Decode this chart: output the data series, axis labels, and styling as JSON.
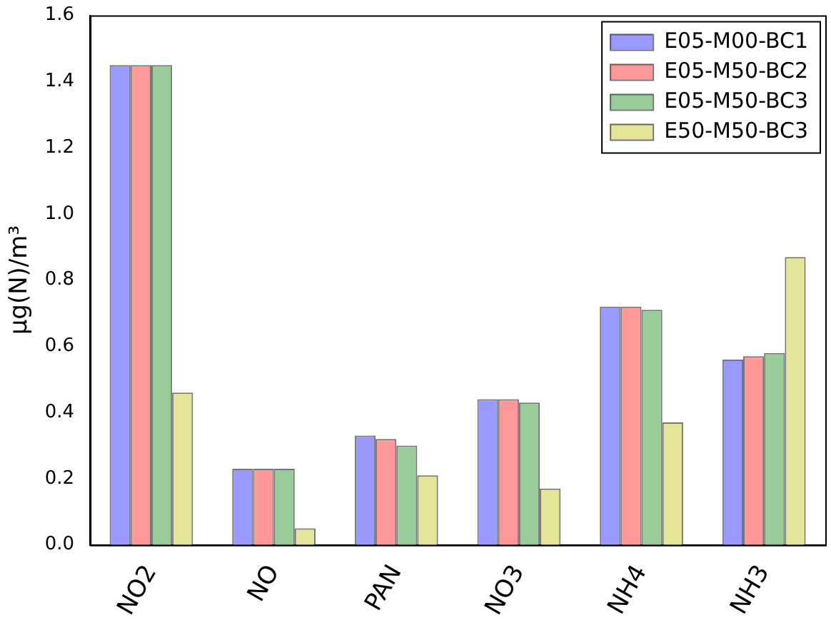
{
  "chart_data": {
    "type": "bar",
    "ylabel": "μg(N)/m³",
    "categories": [
      "NO2",
      "NO",
      "PAN",
      "NO3",
      "NH4",
      "NH3"
    ],
    "series": [
      {
        "name": "E05-M00-BC1",
        "color": "#9999ff",
        "values": [
          1.45,
          0.23,
          0.33,
          0.44,
          0.72,
          0.56
        ]
      },
      {
        "name": "E05-M50-BC2",
        "color": "#ff9999",
        "values": [
          1.45,
          0.23,
          0.32,
          0.44,
          0.72,
          0.57
        ]
      },
      {
        "name": "E05-M50-BC3",
        "color": "#99cc99",
        "values": [
          1.45,
          0.23,
          0.3,
          0.43,
          0.71,
          0.58
        ]
      },
      {
        "name": "E50-M50-BC3",
        "color": "#e5e599",
        "values": [
          0.46,
          0.05,
          0.21,
          0.17,
          0.37,
          0.87
        ]
      }
    ],
    "ylim": [
      0,
      1.6
    ],
    "yticks": [
      {
        "value": 0,
        "label": "0.0"
      },
      0.2,
      0.4,
      0.6,
      0.8,
      {
        "value": 1,
        "label": "1.0"
      },
      1.2,
      1.4,
      1.6
    ],
    "grid": false,
    "legend": "top right"
  }
}
